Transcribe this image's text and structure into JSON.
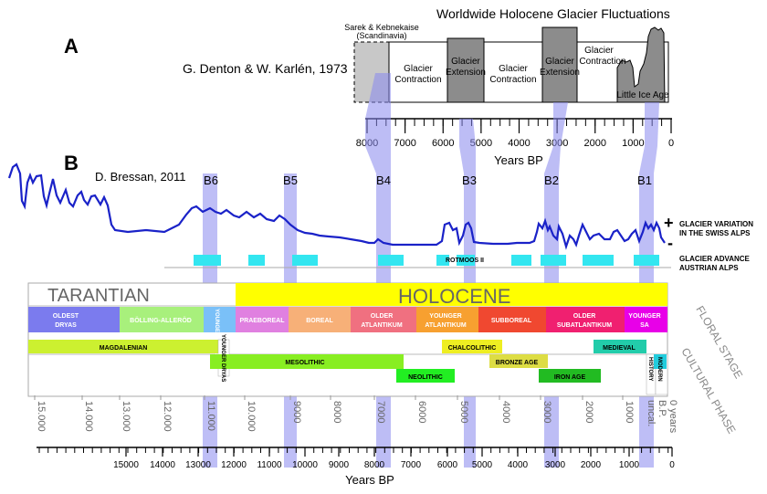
{
  "panel_a": {
    "label": "A",
    "title": "Worldwide Holocene Glacier Fluctuations",
    "author": "G. Denton & W. Karlén, 1973",
    "sarek_label_line1": "Sarek & Kebnekaise",
    "sarek_label_line2": "(Scandinavia)",
    "phases": [
      {
        "line1": "Glacier",
        "line2": "Contraction"
      },
      {
        "line1": "Glacier",
        "line2": "Extension"
      },
      {
        "line1": "Glacier",
        "line2": "Contraction"
      },
      {
        "line1": "Glacier",
        "line2": "Extension"
      },
      {
        "line1": "Glacier",
        "line2": "Contraction"
      }
    ],
    "little_ice_age": "Little Ice Age",
    "axis_ticks": [
      "8000",
      "7000",
      "6000",
      "5000",
      "4000",
      "3000",
      "2000",
      "1000",
      "0"
    ],
    "axis_title": "Years BP"
  },
  "panel_b": {
    "label": "B",
    "author": "D. Bressan, 2011",
    "events": [
      "B6",
      "B5",
      "B4",
      "B3",
      "B2",
      "B1"
    ],
    "glacier_variation_line1": "GLACIER VARIATION",
    "glacier_variation_line2": "IN THE SWISS ALPS",
    "plus": "+",
    "minus": "-",
    "advance_line1": "GLACIER ADVANCE",
    "advance_line2": "AUSTRIAN ALPS",
    "rotmoos": "ROTMOOS II",
    "tarantian": "TARANTIAN",
    "holocene": "HOLOCENE",
    "floral_stage": "FLORAL STAGE",
    "cultural_phase": "CULTURAL PHASE",
    "floral": {
      "oldest_dryas_1": "OLDEST",
      "oldest_dryas_2": "DRYAS",
      "bolling": "BÖLLING-ALLERÖD",
      "younger_dryas": "YOUNGER DRYAS",
      "praeboreal": "PRAEBOREAL",
      "boreal": "BOREAL",
      "older_atl_1": "OLDER",
      "older_atl_2": "ATLANTIKUM",
      "younger_atl_1": "YOUNGER",
      "younger_atl_2": "ATLANTIKUM",
      "subboreal": "SUBBOREAL",
      "older_sub_1": "OLDER",
      "older_sub_2": "SUBATLANTIKUM",
      "younger_sa_1": "YOUNGER",
      "younger_sa_2": "SA"
    },
    "cultural": {
      "magdalenian": "MAGDALENIAN",
      "younger_dryas_v": "YOUNGER DRYAS",
      "mesolithic": "MESOLITHIC",
      "neolithic": "NEOLITHIC",
      "chalcolithic": "CHALCOLITHIC",
      "bronze_age": "BRONZE AGE",
      "iron_age": "IRON AGE",
      "medieval": "MEDIEVAL",
      "history": "HISTORY",
      "modern": "MODERN"
    },
    "upper_scale": [
      "15.000",
      "14.000",
      "13.000",
      "12.000",
      "11.000",
      "10.000",
      "9000",
      "8000",
      "7000",
      "6000",
      "5000",
      "4000",
      "3000",
      "2000",
      "1000"
    ],
    "upper_scale_end_1": "0 years",
    "upper_scale_end_2": "B.P.",
    "upper_scale_end_3": "uncal.",
    "lower_ticks": [
      "15000",
      "14000",
      "13000",
      "12000",
      "11000",
      "10000",
      "9000",
      "8000",
      "7000",
      "6000",
      "5000",
      "4000",
      "3000",
      "2000",
      "1000",
      "0"
    ],
    "axis_title": "Years BP"
  },
  "colors": {
    "curve": "#1a22c8",
    "highlight": "#8888ee",
    "advance": "#33e6f0",
    "tarantian_bg": "#ffffff",
    "holocene_bg": "#ffff00",
    "extension": "#8c8c8c",
    "sarek": "#c8c8c8"
  }
}
